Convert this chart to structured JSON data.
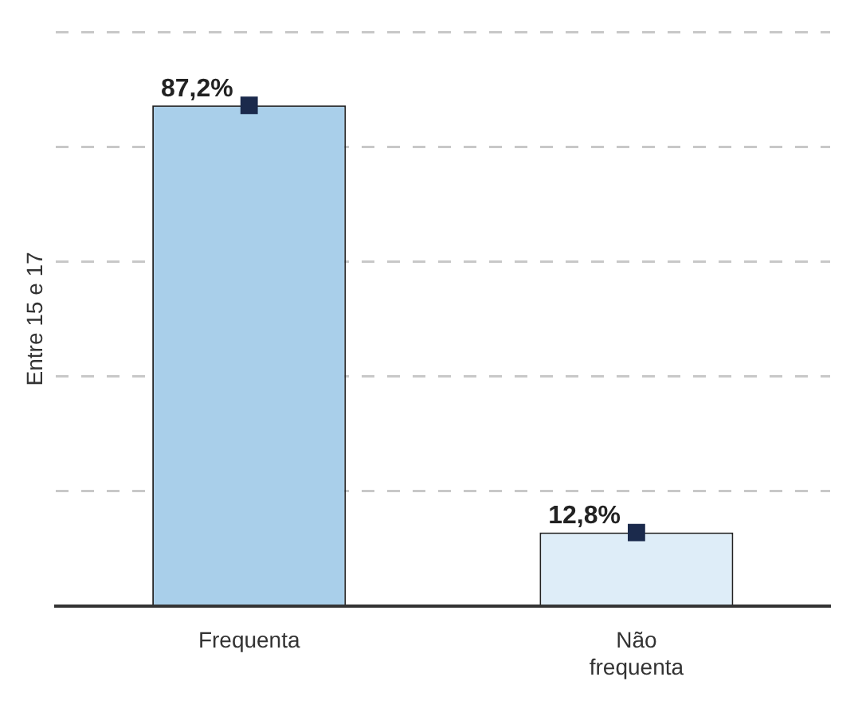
{
  "chart_data": {
    "type": "bar",
    "ylabel": "Entre 15 e 17",
    "categories": [
      "Frequenta",
      "Não frequenta"
    ],
    "series": [
      {
        "values": [
          87.2,
          12.8
        ],
        "colors": [
          "#a9cfea",
          "#deedf8"
        ],
        "value_labels": [
          "87,2%",
          "12,8%"
        ]
      },
      {
        "type": "scatter",
        "x": [
          "Frequenta",
          "Não frequenta"
        ],
        "values": [
          87.2,
          12.8
        ],
        "color": "#1b2a4c",
        "marker": "square"
      }
    ],
    "grid": "y",
    "legend": false,
    "tick_labels": "x"
  }
}
